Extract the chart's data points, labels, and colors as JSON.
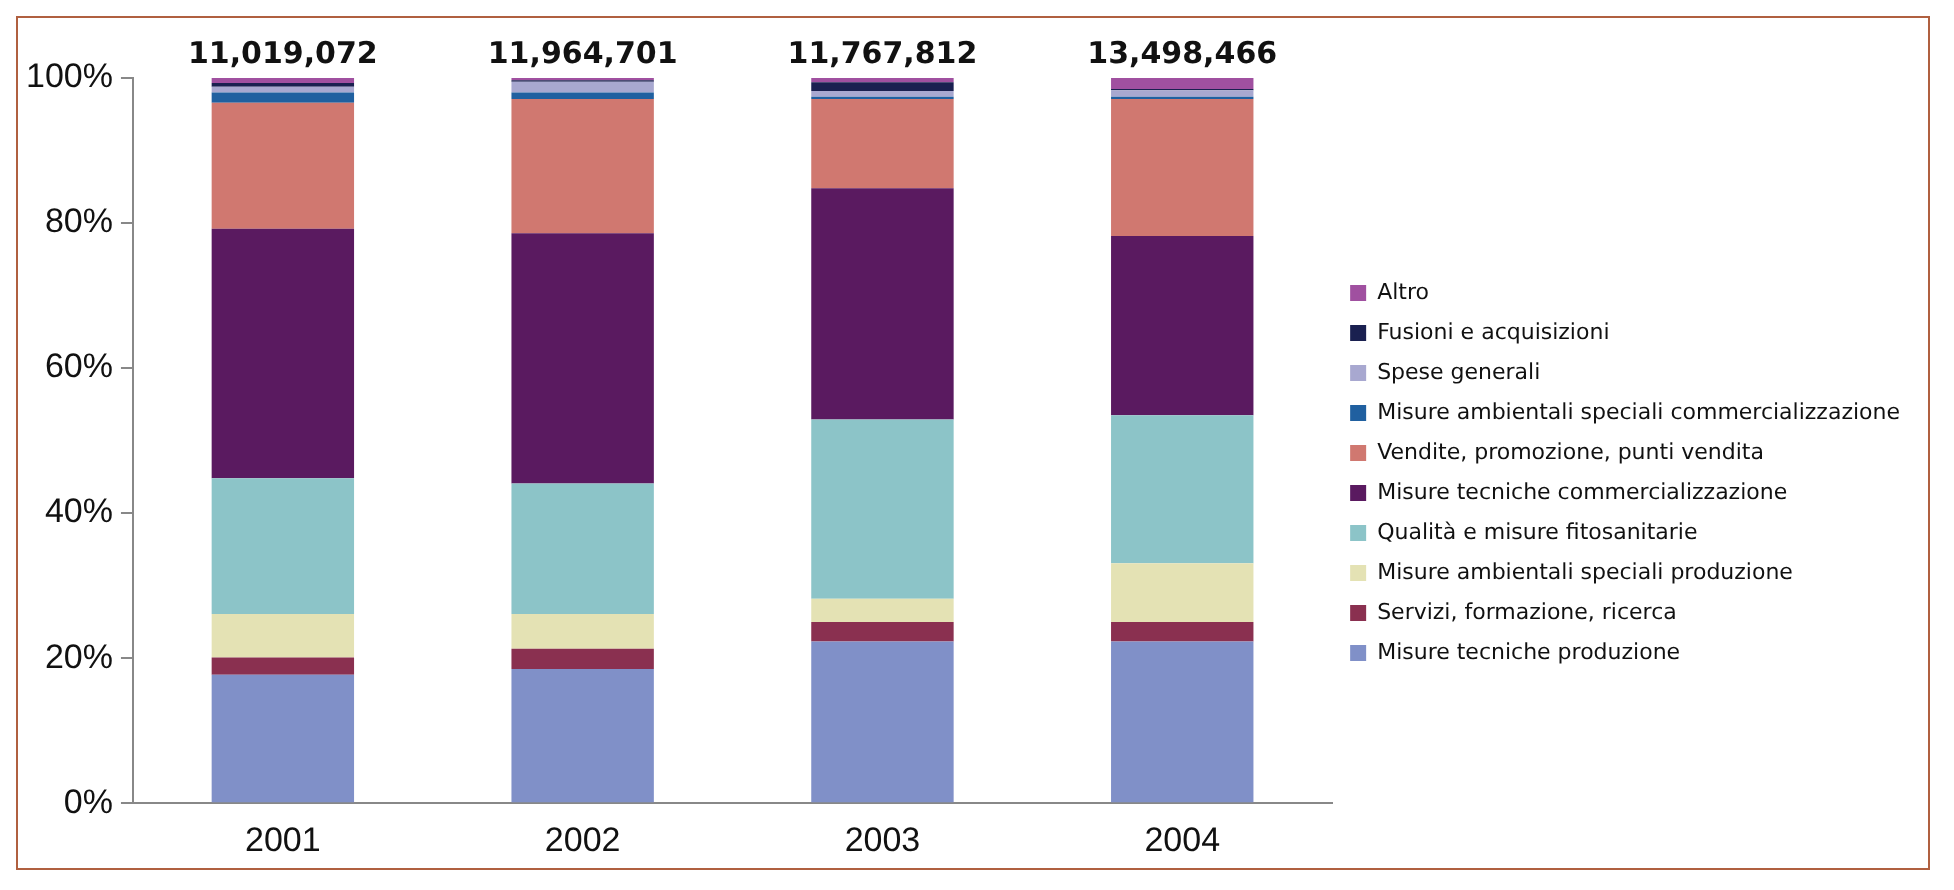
{
  "chart_data": {
    "type": "bar",
    "stacked": true,
    "categories": [
      "2001",
      "2002",
      "2003",
      "2004"
    ],
    "series": [
      {
        "name": "Misure tecniche produzione",
        "color": "#8090c8",
        "values": [
          17.7,
          18.5,
          22.3,
          22.3
        ]
      },
      {
        "name": "Servizi, formazione, ricerca",
        "color": "#8a3050",
        "values": [
          2.4,
          2.8,
          2.7,
          2.7
        ]
      },
      {
        "name": "Misure ambientali speciali produzione",
        "color": "#e4e2b4",
        "values": [
          6.0,
          4.8,
          3.2,
          8.1
        ]
      },
      {
        "name": "Qualità e misure fitosanitarie",
        "color": "#8cc4c8",
        "values": [
          18.7,
          18.0,
          24.7,
          20.4
        ]
      },
      {
        "name": "Misure tecniche commercializzazione",
        "color": "#5a1a60",
        "values": [
          34.4,
          34.5,
          31.9,
          24.7
        ]
      },
      {
        "name": "Vendite, promozione, punti vendita",
        "color": "#d07870",
        "values": [
          17.4,
          18.5,
          12.3,
          18.9
        ]
      },
      {
        "name": "Misure ambientali speciali commercializzazione",
        "color": "#2060a0",
        "values": [
          1.4,
          0.9,
          0.3,
          0.3
        ]
      },
      {
        "name": "Spese generali",
        "color": "#a8a8d0",
        "values": [
          0.8,
          1.5,
          0.8,
          0.9
        ]
      },
      {
        "name": "Fusioni e acquisizioni",
        "color": "#1a2050",
        "values": [
          0.5,
          0.2,
          1.2,
          0.2
        ]
      },
      {
        "name": "Altro",
        "color": "#a050a0",
        "values": [
          0.7,
          0.3,
          0.6,
          1.5
        ]
      }
    ],
    "ylim": [
      0,
      100
    ],
    "yticks": [
      {
        "value": 0,
        "label": "0%"
      },
      {
        "value": 20,
        "label": "20%"
      },
      {
        "value": 40,
        "label": "40%"
      },
      {
        "value": 60,
        "label": "60%"
      },
      {
        "value": 80,
        "label": "80%"
      },
      {
        "value": 100,
        "label": "100%"
      }
    ],
    "annotations": [
      {
        "text": "11,019,072",
        "x": "2001",
        "y": 100
      },
      {
        "text": "11,964,701",
        "x": "2002",
        "y": 100
      },
      {
        "text": "11,767,812",
        "x": "2003",
        "y": 100
      },
      {
        "text": "13,498,466",
        "x": "2004",
        "y": 100
      }
    ],
    "grid": false,
    "legend": "right"
  }
}
